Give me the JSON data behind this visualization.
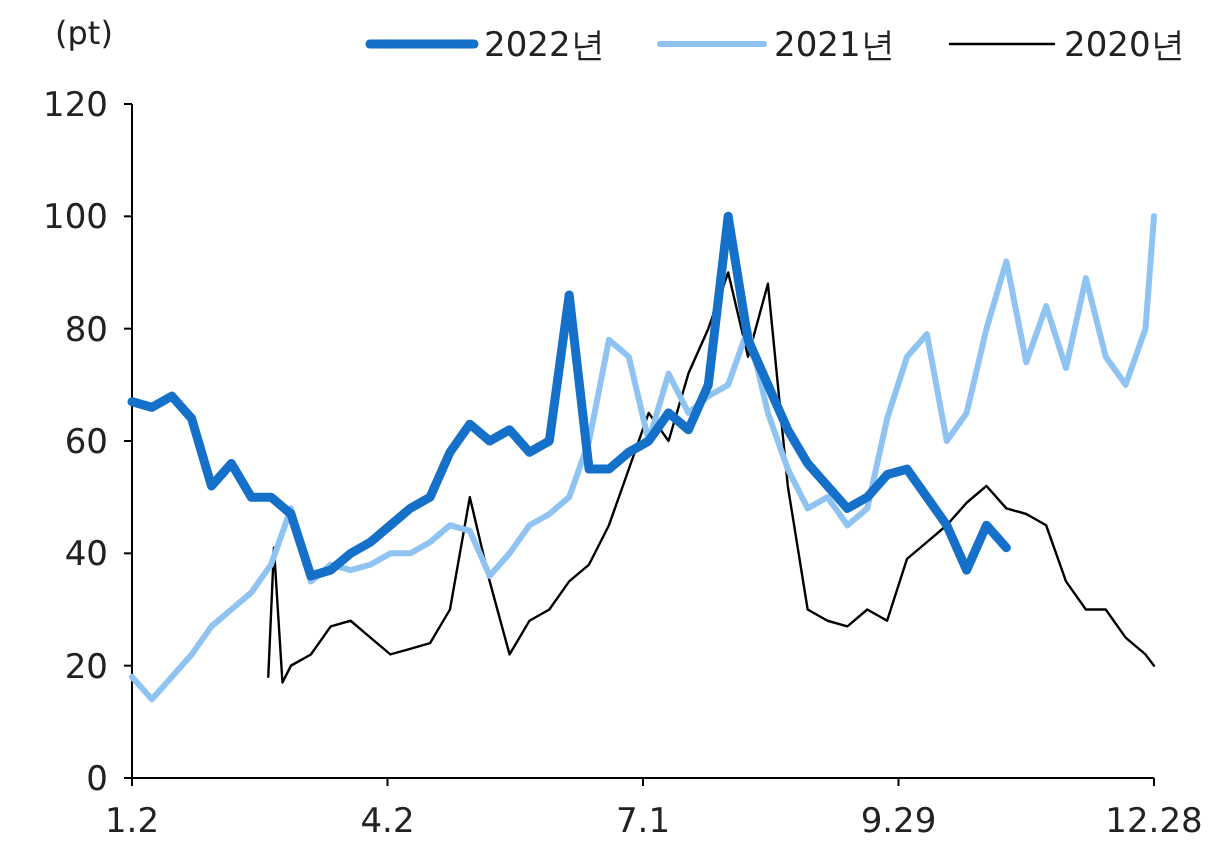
{
  "chart_data": {
    "type": "line",
    "ylabel": "(pt)",
    "legend": "top right",
    "grid": false,
    "xlim": [
      "--01-02",
      "--12-28"
    ],
    "xticks": [
      {
        "value": "--01-02",
        "label": "1.2"
      },
      {
        "value": "--04-02",
        "label": "4.2"
      },
      {
        "value": "--07-01",
        "label": "7.1"
      },
      {
        "value": "--09-29",
        "label": "9.29"
      },
      {
        "value": "--12-28",
        "label": "12.28"
      }
    ],
    "ylim": [
      0,
      120
    ],
    "yticks": [
      0,
      20,
      40,
      60,
      80,
      100,
      120
    ],
    "series": [
      {
        "name": "2022년",
        "color": "#1470c8",
        "x": [
          "--01-02",
          "--01-09",
          "--01-16",
          "--01-23",
          "--01-30",
          "--02-06",
          "--02-13",
          "--02-20",
          "--02-27",
          "--03-06",
          "--03-13",
          "--03-20",
          "--03-27",
          "--04-03",
          "--04-10",
          "--04-17",
          "--04-24",
          "--05-01",
          "--05-08",
          "--05-15",
          "--05-22",
          "--05-29",
          "--06-05",
          "--06-12",
          "--06-19",
          "--06-26",
          "--07-03",
          "--07-10",
          "--07-17",
          "--07-24",
          "--07-31",
          "--08-07",
          "--08-14",
          "--08-21",
          "--08-28",
          "--09-04",
          "--09-11",
          "--09-18",
          "--09-25",
          "--10-02",
          "--10-09",
          "--10-16",
          "--10-23",
          "--10-30",
          "--11-06"
        ],
        "values": [
          67,
          66,
          68,
          64,
          52,
          56,
          50,
          50,
          47,
          36,
          37,
          40,
          42,
          45,
          48,
          50,
          58,
          63,
          60,
          62,
          58,
          60,
          86,
          55,
          55,
          58,
          60,
          65,
          62,
          70,
          100,
          78,
          70,
          62,
          56,
          52,
          48,
          50,
          54,
          55,
          50,
          45,
          37,
          45,
          41
        ]
      },
      {
        "name": "2021년",
        "color": "#8fc3f2",
        "x": [
          "--01-02",
          "--01-09",
          "--01-16",
          "--01-23",
          "--01-30",
          "--02-06",
          "--02-13",
          "--02-20",
          "--02-27",
          "--03-06",
          "--03-13",
          "--03-20",
          "--03-27",
          "--04-03",
          "--04-10",
          "--04-17",
          "--04-24",
          "--05-01",
          "--05-08",
          "--05-15",
          "--05-22",
          "--05-29",
          "--06-05",
          "--06-12",
          "--06-19",
          "--06-26",
          "--07-03",
          "--07-10",
          "--07-17",
          "--07-24",
          "--07-31",
          "--08-07",
          "--08-14",
          "--08-21",
          "--08-28",
          "--09-04",
          "--09-11",
          "--09-18",
          "--09-25",
          "--10-02",
          "--10-09",
          "--10-16",
          "--10-23",
          "--10-30",
          "--11-06",
          "--11-13",
          "--11-20",
          "--11-27",
          "--12-04",
          "--12-11",
          "--12-18",
          "--12-25",
          "--12-28"
        ],
        "values": [
          18,
          14,
          18,
          22,
          27,
          30,
          33,
          38,
          48,
          35,
          38,
          37,
          38,
          40,
          40,
          42,
          45,
          44,
          36,
          40,
          45,
          47,
          50,
          60,
          78,
          75,
          60,
          72,
          65,
          68,
          70,
          80,
          65,
          55,
          48,
          50,
          45,
          48,
          64,
          75,
          79,
          60,
          65,
          80,
          92,
          74,
          84,
          73,
          89,
          75,
          70,
          80,
          100
        ]
      },
      {
        "name": "2020년",
        "color": "#000000",
        "x": [
          "--02-19",
          "--02-21",
          "--02-24",
          "--02-27",
          "--03-06",
          "--03-13",
          "--03-20",
          "--03-27",
          "--04-03",
          "--04-10",
          "--04-17",
          "--04-24",
          "--05-01",
          "--05-08",
          "--05-15",
          "--05-22",
          "--05-29",
          "--06-05",
          "--06-12",
          "--06-19",
          "--06-26",
          "--07-03",
          "--07-10",
          "--07-17",
          "--07-24",
          "--07-31",
          "--08-07",
          "--08-14",
          "--08-21",
          "--08-28",
          "--09-04",
          "--09-11",
          "--09-18",
          "--09-25",
          "--10-02",
          "--10-09",
          "--10-16",
          "--10-23",
          "--10-30",
          "--11-06",
          "--11-13",
          "--11-20",
          "--11-27",
          "--12-04",
          "--12-11",
          "--12-18",
          "--12-25",
          "--12-28"
        ],
        "values": [
          18,
          41,
          17,
          20,
          22,
          27,
          28,
          25,
          22,
          23,
          24,
          30,
          50,
          35,
          22,
          28,
          30,
          35,
          38,
          45,
          55,
          65,
          60,
          72,
          80,
          90,
          75,
          88,
          52,
          30,
          28,
          27,
          30,
          28,
          39,
          42,
          45,
          49,
          52,
          48,
          47,
          45,
          35,
          30,
          30,
          25,
          22,
          20
        ]
      }
    ]
  }
}
